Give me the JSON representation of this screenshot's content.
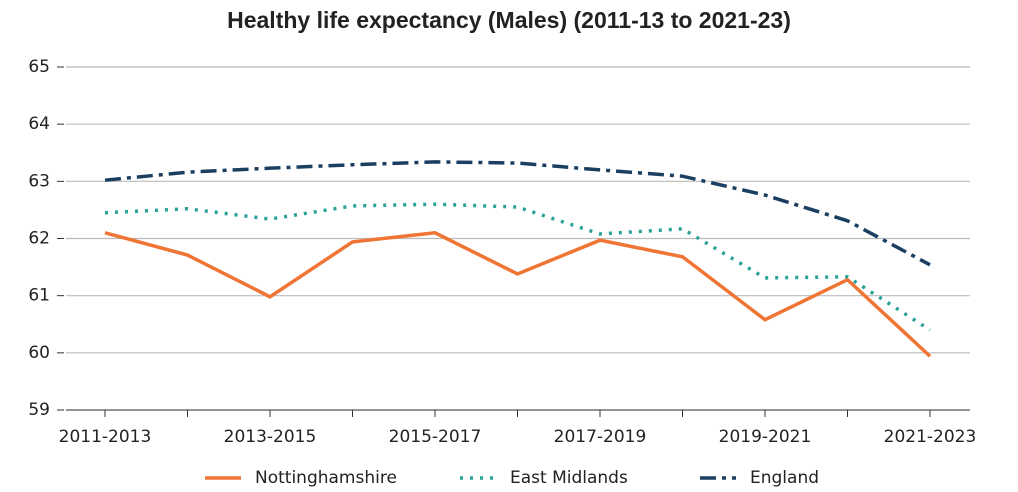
{
  "chart_data": {
    "type": "line",
    "title": "Healthy life expectancy (Males) (2011-13 to 2021-23)",
    "categories": [
      "2011-2013",
      null,
      "2013-2015",
      null,
      "2015-2017",
      null,
      "2017-2019",
      null,
      "2019-2021",
      null,
      "2021-2023"
    ],
    "series": [
      {
        "name": "Nottinghamshire",
        "color": "#f07534",
        "dash": "solid",
        "values": [
          62.1,
          61.71,
          60.98,
          61.94,
          62.1,
          61.38,
          61.97,
          61.68,
          60.58,
          61.28,
          59.94
        ]
      },
      {
        "name": "East Midlands",
        "color": "#2aa198",
        "dash": "dotted",
        "values": [
          62.45,
          62.52,
          62.34,
          62.57,
          62.6,
          62.55,
          62.08,
          62.17,
          61.31,
          61.33,
          60.4
        ]
      },
      {
        "name": "England",
        "color": "#1b3f61",
        "dash": "dashdot",
        "values": [
          63.02,
          63.16,
          63.23,
          63.29,
          63.34,
          63.32,
          63.2,
          63.09,
          62.76,
          62.31,
          61.54
        ]
      }
    ],
    "ylim": [
      59,
      65
    ],
    "yticks": [
      59,
      60,
      61,
      62,
      63,
      64,
      65
    ],
    "grid": true,
    "legend": "bottom"
  }
}
